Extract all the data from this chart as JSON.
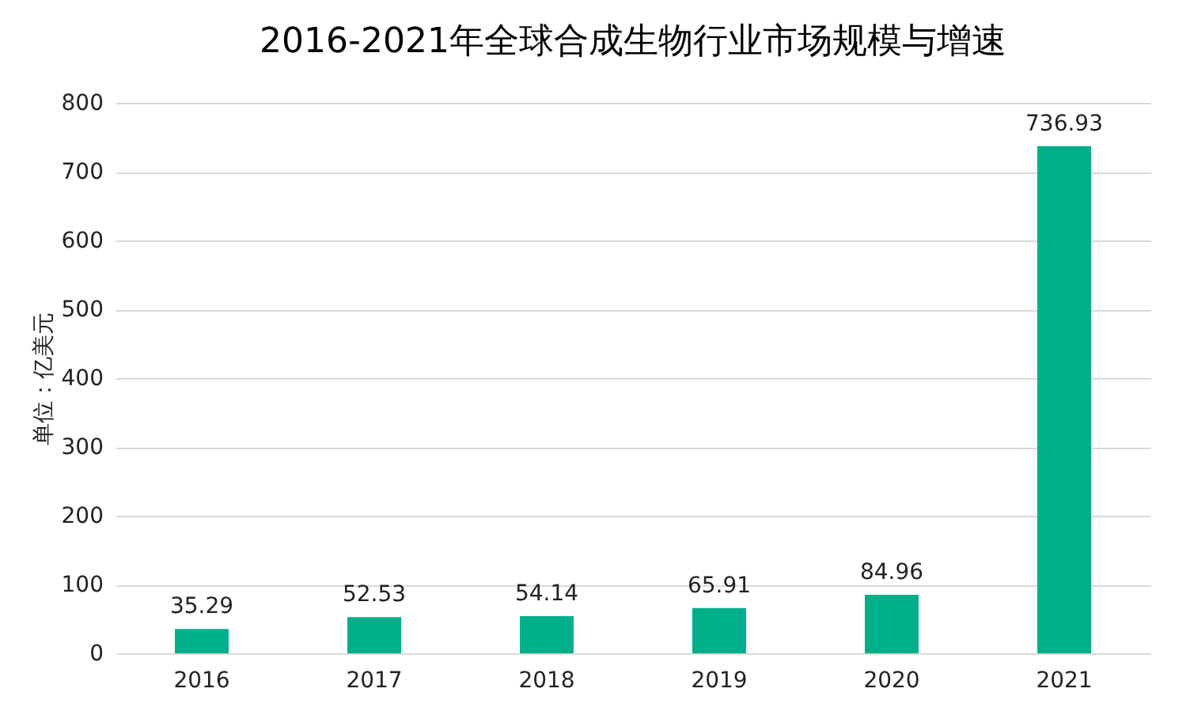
{
  "chart_data": {
    "type": "bar",
    "title": "2016-2021年全球合成生物行业市场规模与增速",
    "ylabel": "单位：亿美元",
    "categories": [
      "2016",
      "2017",
      "2018",
      "2019",
      "2020",
      "2021"
    ],
    "values": [
      35.29,
      52.53,
      54.14,
      65.91,
      84.96,
      736.93
    ],
    "color": "#00b08a",
    "data_labels": true,
    "grid": "y",
    "ylim": [
      0,
      800
    ],
    "yticks": [
      0,
      100,
      200,
      300,
      400,
      500,
      600,
      700,
      800
    ]
  }
}
